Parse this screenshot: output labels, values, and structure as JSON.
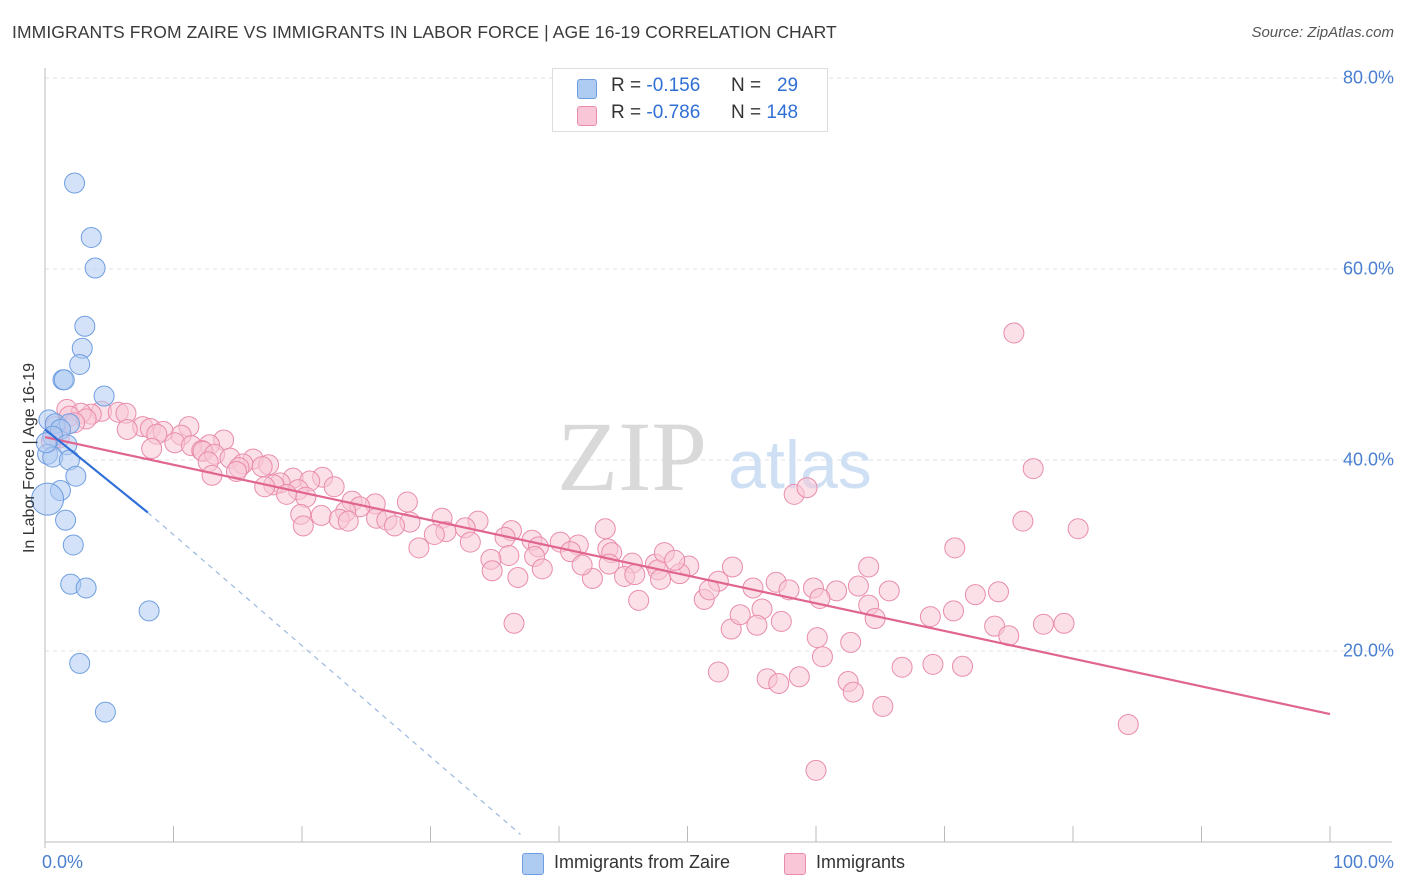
{
  "header": {
    "title": "IMMIGRANTS FROM ZAIRE VS IMMIGRANTS IN LABOR FORCE | AGE 16-19 CORRELATION CHART",
    "source": "Source: ZipAtlas.com"
  },
  "watermark": {
    "zip": "ZIP",
    "atlas": "atlas"
  },
  "stats": [
    {
      "r_label": "R =",
      "r_value": "-0.156",
      "n_label": "N =",
      "n_value": "29",
      "color": "#aecbf2",
      "border": "#6f9ee0"
    },
    {
      "r_label": "R =",
      "r_value": "-0.786",
      "n_label": "N =",
      "n_value": "148",
      "color": "#f8c6d6",
      "border": "#e98cab"
    }
  ],
  "legend": [
    {
      "label": "Immigrants from Zaire",
      "color": "#aecbf2",
      "border": "#6f9ee0"
    },
    {
      "label": "Immigrants",
      "color": "#f8c6d6",
      "border": "#e98cab"
    }
  ],
  "chart_data": {
    "type": "scatter",
    "title": "IMMIGRANTS FROM ZAIRE VS IMMIGRANTS IN LABOR FORCE | AGE 16-19 CORRELATION CHART",
    "xlabel": "",
    "ylabel": "In Labor Force | Age 16-19",
    "xlim": [
      0,
      100
    ],
    "ylim": [
      0,
      80
    ],
    "x_tick_labels": [
      "0.0%",
      "100.0%"
    ],
    "y_ticks": [
      20,
      40,
      60,
      80
    ],
    "y_tick_labels": [
      "20.0%",
      "40.0%",
      "60.0%",
      "80.0%"
    ],
    "grid": true,
    "legend_position": "bottom",
    "series": [
      {
        "name": "Immigrants from Zaire",
        "color": "#aecbf2",
        "stroke": "#6f9ee0",
        "trend": {
          "x": [
            0,
            8
          ],
          "y": [
            43.2,
            34.5
          ],
          "extended_to": [
            37,
            0.8
          ]
        },
        "points": [
          [
            2.3,
            69
          ],
          [
            3.6,
            63.3
          ],
          [
            3.9,
            60.1
          ],
          [
            3.1,
            54
          ],
          [
            2.9,
            51.7
          ],
          [
            2.7,
            50
          ],
          [
            1.4,
            48.4
          ],
          [
            1.5,
            48.4
          ],
          [
            4.6,
            46.7
          ],
          [
            0.3,
            44.2
          ],
          [
            0.8,
            43.8
          ],
          [
            1.9,
            43.8
          ],
          [
            1.2,
            43.2
          ],
          [
            0.6,
            42.5
          ],
          [
            1.7,
            41.6
          ],
          [
            0.2,
            40.6
          ],
          [
            0.6,
            40.3
          ],
          [
            1.9,
            40
          ],
          [
            2.4,
            38.3
          ],
          [
            1.2,
            36.8
          ],
          [
            0.2,
            35.9
          ],
          [
            1.6,
            33.7
          ],
          [
            2.2,
            31.1
          ],
          [
            2.0,
            27
          ],
          [
            3.2,
            26.6
          ],
          [
            8.1,
            24.2
          ],
          [
            2.7,
            18.7
          ],
          [
            4.7,
            13.6
          ],
          [
            0.1,
            41.8
          ]
        ],
        "sizes": [
          10,
          10,
          10,
          10,
          10,
          10,
          10,
          10,
          10,
          10,
          10,
          10,
          10,
          10,
          10,
          10,
          10,
          10,
          10,
          10,
          16,
          10,
          10,
          10,
          10,
          10,
          10,
          10,
          10
        ]
      },
      {
        "name": "Immigrants",
        "color": "#f8c6d6",
        "stroke": "#e98cab",
        "trend": {
          "x": [
            0,
            100
          ],
          "y": [
            42.4,
            13.4
          ]
        },
        "points": [
          [
            1.7,
            45.3
          ],
          [
            4.4,
            45.1
          ],
          [
            5.7,
            45
          ],
          [
            6.3,
            44.9
          ],
          [
            3.6,
            44.8
          ],
          [
            2.8,
            44.9
          ],
          [
            1.9,
            44.6
          ],
          [
            3.2,
            44.3
          ],
          [
            2.3,
            43.9
          ],
          [
            0.8,
            43.5
          ],
          [
            7.6,
            43.5
          ],
          [
            8.2,
            43.3
          ],
          [
            6.4,
            43.2
          ],
          [
            9.2,
            43
          ],
          [
            11.2,
            43.5
          ],
          [
            8.7,
            42.7
          ],
          [
            10.6,
            42.6
          ],
          [
            1.1,
            42.3
          ],
          [
            0.5,
            42
          ],
          [
            13.9,
            42.1
          ],
          [
            10.1,
            41.8
          ],
          [
            12.8,
            41.6
          ],
          [
            11.4,
            41.5
          ],
          [
            8.3,
            41.2
          ],
          [
            12.2,
            41
          ],
          [
            12.3,
            40.9
          ],
          [
            13.2,
            40.6
          ],
          [
            14.4,
            40.2
          ],
          [
            16.2,
            40.1
          ],
          [
            12.7,
            39.8
          ],
          [
            15.4,
            39.6
          ],
          [
            17.4,
            39.5
          ],
          [
            16.9,
            39.3
          ],
          [
            15.1,
            39.2
          ],
          [
            14.9,
            38.8
          ],
          [
            13.0,
            38.4
          ],
          [
            21.6,
            38.2
          ],
          [
            19.3,
            38.1
          ],
          [
            20.6,
            37.8
          ],
          [
            18.3,
            37.6
          ],
          [
            17.8,
            37.4
          ],
          [
            17.1,
            37.2
          ],
          [
            22.5,
            37.2
          ],
          [
            19.7,
            36.9
          ],
          [
            18.8,
            36.4
          ],
          [
            20.3,
            36.1
          ],
          [
            23.9,
            35.7
          ],
          [
            28.2,
            35.6
          ],
          [
            25.7,
            35.4
          ],
          [
            24.5,
            35.1
          ],
          [
            23.4,
            34.6
          ],
          [
            19.9,
            34.3
          ],
          [
            21.5,
            34.2
          ],
          [
            25.8,
            33.9
          ],
          [
            22.9,
            33.8
          ],
          [
            26.6,
            33.7
          ],
          [
            28.4,
            33.5
          ],
          [
            30.9,
            33.9
          ],
          [
            23.6,
            33.6
          ],
          [
            20.1,
            33.1
          ],
          [
            27.2,
            33.1
          ],
          [
            33.7,
            33.6
          ],
          [
            32.7,
            32.9
          ],
          [
            36.3,
            32.6
          ],
          [
            31.2,
            32.5
          ],
          [
            30.3,
            32.2
          ],
          [
            35.8,
            31.9
          ],
          [
            37.9,
            31.6
          ],
          [
            33.1,
            31.4
          ],
          [
            40.1,
            31.4
          ],
          [
            41.5,
            31.1
          ],
          [
            38.4,
            30.9
          ],
          [
            29.1,
            30.8
          ],
          [
            40.9,
            30.4
          ],
          [
            43.8,
            30.7
          ],
          [
            44.1,
            30.3
          ],
          [
            36.1,
            30.0
          ],
          [
            38.1,
            29.9
          ],
          [
            34.7,
            29.6
          ],
          [
            43.9,
            29.1
          ],
          [
            45.7,
            29.2
          ],
          [
            47.5,
            29.1
          ],
          [
            38.7,
            28.6
          ],
          [
            34.8,
            28.4
          ],
          [
            47.7,
            28.5
          ],
          [
            50.1,
            28.9
          ],
          [
            53.5,
            28.8
          ],
          [
            49.4,
            28.1
          ],
          [
            45.1,
            27.8
          ],
          [
            36.8,
            27.7
          ],
          [
            42.6,
            27.6
          ],
          [
            47.9,
            27.5
          ],
          [
            52.4,
            27.3
          ],
          [
            56.9,
            27.2
          ],
          [
            55.1,
            26.6
          ],
          [
            57.9,
            26.4
          ],
          [
            59.8,
            26.6
          ],
          [
            61.6,
            26.3
          ],
          [
            60.3,
            25.5
          ],
          [
            51.3,
            25.4
          ],
          [
            46.2,
            25.3
          ],
          [
            64.1,
            24.8
          ],
          [
            70.7,
            24.2
          ],
          [
            68.9,
            23.6
          ],
          [
            64.6,
            23.4
          ],
          [
            57.3,
            23.1
          ],
          [
            53.4,
            22.3
          ],
          [
            36.5,
            22.9
          ],
          [
            77.7,
            22.8
          ],
          [
            73.9,
            22.6
          ],
          [
            75.0,
            21.6
          ],
          [
            72.4,
            25.9
          ],
          [
            74.2,
            26.2
          ],
          [
            65.7,
            26.3
          ],
          [
            63.3,
            26.8
          ],
          [
            79.3,
            22.9
          ],
          [
            76.1,
            33.6
          ],
          [
            80.4,
            32.8
          ],
          [
            70.8,
            30.8
          ],
          [
            64.1,
            28.8
          ],
          [
            58.3,
            36.4
          ],
          [
            59.3,
            37.1
          ],
          [
            76.9,
            39.1
          ],
          [
            75.4,
            53.3
          ],
          [
            54.1,
            23.8
          ],
          [
            55.8,
            24.4
          ],
          [
            55.4,
            22.7
          ],
          [
            60.1,
            21.4
          ],
          [
            62.7,
            20.9
          ],
          [
            60.5,
            19.4
          ],
          [
            66.7,
            18.3
          ],
          [
            69.1,
            18.6
          ],
          [
            71.4,
            18.4
          ],
          [
            52.4,
            17.8
          ],
          [
            56.2,
            17.1
          ],
          [
            58.7,
            17.3
          ],
          [
            62.5,
            16.8
          ],
          [
            57.1,
            16.6
          ],
          [
            62.9,
            15.7
          ],
          [
            65.2,
            14.2
          ],
          [
            84.3,
            12.3
          ],
          [
            60.0,
            7.5
          ],
          [
            48.2,
            30.3
          ],
          [
            43.6,
            32.8
          ],
          [
            49.0,
            29.5
          ],
          [
            51.7,
            26.4
          ],
          [
            41.8,
            29.0
          ],
          [
            45.9,
            28.0
          ]
        ],
        "sizes": [
          10
        ]
      }
    ]
  }
}
